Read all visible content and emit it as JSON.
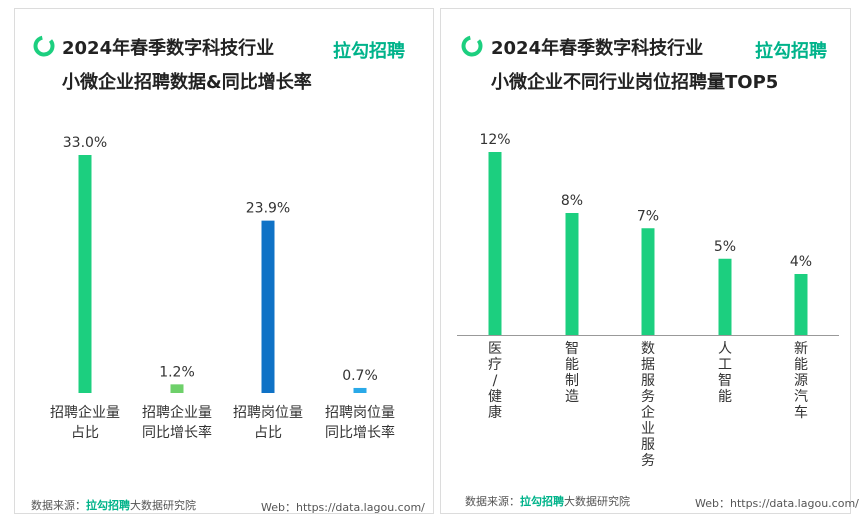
{
  "brand": "拉勾招聘",
  "colors": {
    "green": "#1ccf7f",
    "light_green": "#6ed06a",
    "blue": "#0f72c6",
    "light_blue": "#2aa9e8",
    "brand": "#00b38a"
  },
  "left": {
    "title_line1": "2024年春季数字科技行业",
    "title_line2": "小微企业招聘数据&同比增长率",
    "footer_source_label": "数据来源：",
    "footer_source_brand": "拉勾招聘",
    "footer_source_suffix": "大数据研究院",
    "footer_web": "Web：https://data.lagou.com/"
  },
  "right": {
    "title_line1": "2024年春季数字科技行业",
    "title_line2": "小微企业不同行业岗位招聘量TOP5",
    "footer_source_label": "数据来源：",
    "footer_source_brand": "拉勾招聘",
    "footer_source_suffix": "大数据研究院",
    "footer_web": "Web：https://data.lagou.com/"
  },
  "chart_data": [
    {
      "type": "bar",
      "title": "2024年春季数字科技行业小微企业招聘数据&同比增长率",
      "categories": [
        "招聘企业量占比",
        "招聘企业量同比增长率",
        "招聘岗位量占比",
        "招聘岗位量同比增长率"
      ],
      "category_lines": [
        [
          "招聘企业量",
          "占比"
        ],
        [
          "招聘企业量",
          "同比增长率"
        ],
        [
          "招聘岗位量",
          "占比"
        ],
        [
          "招聘岗位量",
          "同比增长率"
        ]
      ],
      "values": [
        33.0,
        1.2,
        23.9,
        0.7
      ],
      "labels": [
        "33.0%",
        "1.2%",
        "23.9%",
        "0.7%"
      ],
      "colors": [
        "#1ccf7f",
        "#6ed06a",
        "#0f72c6",
        "#2aa9e8"
      ],
      "unit": "%",
      "ylim": [
        0,
        33.0
      ]
    },
    {
      "type": "bar",
      "title": "2024年春季数字科技行业小微企业不同行业岗位招聘量TOP5",
      "categories": [
        "医疗/健康",
        "智能制造",
        "数据服务/企业服务",
        "人工智能",
        "新能源汽车"
      ],
      "category_vertical": [
        "医疗/健康",
        "智能制造",
        "数据服务企业服务",
        "人工智能",
        "新能源汽车"
      ],
      "values": [
        12,
        8,
        7,
        5,
        4
      ],
      "labels": [
        "12%",
        "8%",
        "7%",
        "5%",
        "4%"
      ],
      "unit": "%",
      "ylim": [
        0,
        12
      ]
    }
  ]
}
